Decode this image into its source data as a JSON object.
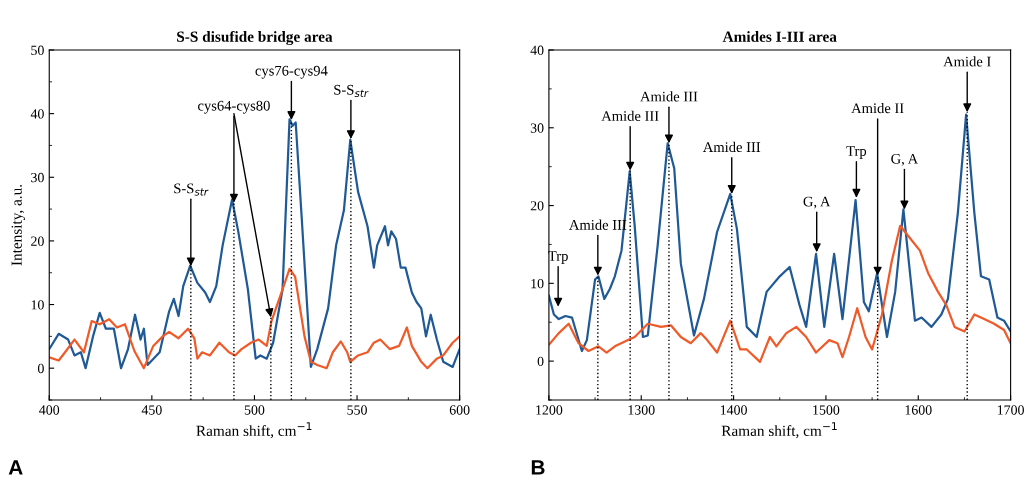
{
  "chart_data": [
    {
      "type": "line",
      "title": "S-S disufide bridge area",
      "xlabel": "Raman shift, cm$^{−1}$",
      "ylabel": "Intensity, a.u.",
      "xlim": [
        400,
        600
      ],
      "xticks": [
        400,
        450,
        500,
        550,
        600
      ],
      "ylim": [
        -5,
        50
      ],
      "yticks": [
        0,
        10,
        20,
        30,
        40,
        50
      ],
      "grid": false,
      "legend": false,
      "series": [
        {
          "color": "#1f5a96",
          "x": [
            400,
            404.6,
            409.2,
            412.3,
            415.4,
            417.7,
            421.5,
            424.6,
            427.6,
            431.5,
            435.0,
            438.4,
            441.8,
            444.5,
            446.1,
            447.9,
            453.8,
            458.4,
            460.7,
            463.0,
            465.3,
            468.7,
            472.2,
            476.0,
            478.3,
            481.4,
            484.5,
            489.1,
            492.2,
            496.8,
            500.6,
            502.9,
            506.0,
            509.1,
            513.7,
            517.1,
            518.6,
            520.1,
            522.9,
            527.5,
            530.6,
            535.9,
            539.8,
            543.6,
            546.7,
            550.5,
            555.1,
            558.2,
            559.8,
            563.6,
            565.1,
            566.7,
            569.0,
            571.3,
            573.6,
            576.7,
            579.0,
            581.3,
            583.6,
            585.9,
            588.9,
            592.0,
            596.6,
            600
          ],
          "values": [
            3.0,
            5.4,
            4.5,
            2.0,
            2.5,
            0,
            5.2,
            8.7,
            6.2,
            6.2,
            0,
            3.0,
            8.4,
            4.5,
            6.2,
            0.5,
            2.5,
            8.9,
            10.9,
            8.2,
            12.9,
            16.1,
            13.4,
            11.9,
            10.4,
            12.9,
            19.3,
            26.5,
            21.3,
            12.4,
            1.5,
            2.0,
            1.5,
            4.0,
            12.4,
            39.1,
            38.1,
            38.6,
            24.3,
            0.2,
            3.0,
            9.4,
            19.3,
            24.8,
            35.9,
            27.7,
            22.3,
            15.8,
            19.3,
            22.3,
            19.3,
            21.5,
            20.3,
            15.8,
            15.8,
            11.9,
            10.4,
            9.4,
            5.0,
            8.4,
            4.5,
            1.0,
            0.2,
            3.0
          ]
        },
        {
          "color": "#f05a28",
          "x": [
            400,
            404.6,
            407.7,
            412.3,
            416.9,
            420.7,
            424.6,
            429.2,
            433.0,
            436.9,
            441.5,
            446.1,
            450.7,
            455.3,
            458.4,
            463.0,
            467.6,
            470.7,
            472.2,
            474.5,
            478.3,
            482.9,
            487.6,
            490.6,
            493.7,
            498.3,
            502.1,
            506.0,
            508.3,
            513.7,
            517.1,
            519.8,
            524.4,
            527.5,
            530.6,
            535.2,
            538.2,
            542.1,
            545.2,
            546.7,
            550.5,
            555.1,
            558.2,
            561.3,
            565.9,
            570.5,
            574.3,
            576.7,
            581.3,
            584.3,
            588.9,
            592.0,
            596.6,
            600
          ],
          "values": [
            1.7,
            1.2,
            2.5,
            4.5,
            2.5,
            7.4,
            6.9,
            7.7,
            6.4,
            6.9,
            2.7,
            0,
            3.5,
            5.0,
            5.7,
            4.7,
            6.2,
            4.7,
            1.5,
            2.5,
            2.0,
            4.0,
            2.5,
            2.0,
            3.0,
            4.0,
            4.5,
            3.5,
            7.4,
            12.4,
            15.6,
            14.4,
            5.0,
            1.0,
            0.5,
            0,
            2.5,
            4.2,
            2.5,
            1.0,
            2.0,
            2.5,
            4.0,
            4.5,
            3.0,
            3.5,
            6.4,
            3.5,
            1.0,
            0,
            1.5,
            2.0,
            4.0,
            5.0
          ]
        },
        {
          "type": "line",
          "line_style": "dotted",
          "color": "#000000",
          "x": [
            469,
            469
          ],
          "values": [
            -5,
            16
          ]
        },
        {
          "type": "line",
          "line_style": "dotted",
          "color": "#000000",
          "x": [
            490,
            490
          ],
          "values": [
            -5,
            26
          ]
        },
        {
          "type": "line",
          "line_style": "dotted",
          "color": "#000000",
          "x": [
            508,
            508
          ],
          "values": [
            -5,
            8
          ]
        },
        {
          "type": "line",
          "line_style": "dotted",
          "color": "#000000",
          "x": [
            518,
            518
          ],
          "values": [
            -5,
            39
          ]
        },
        {
          "type": "line",
          "line_style": "dotted",
          "color": "#000000",
          "x": [
            547,
            547
          ],
          "values": [
            -5,
            36
          ]
        }
      ],
      "annotations": [
        {
          "text": "S-S$_{str}$",
          "x": 469,
          "y": 16
        },
        {
          "text": "cys64-cys80",
          "x": 490,
          "y": 26
        },
        {
          "text": "cys76-cys94",
          "x": 518,
          "y": 39
        },
        {
          "text": "S-S$_{str}$",
          "x": 547,
          "y": 36
        },
        "A"
      ]
    },
    {
      "type": "line",
      "title": "Amides I-III area",
      "xlabel": "Raman shift, cm$^{−1}$",
      "xlim": [
        1200,
        1700
      ],
      "xticks": [
        1200,
        1300,
        1400,
        1500,
        1600,
        1700
      ],
      "ylim": [
        -5,
        40
      ],
      "yticks": [
        0,
        10,
        20,
        30,
        40
      ],
      "grid": false,
      "legend": false,
      "series": [
        {
          "color": "#1f5a96",
          "x": [
            1200,
            1205.4,
            1210.7,
            1217.9,
            1225,
            1235.7,
            1241.1,
            1250,
            1253.6,
            1260,
            1266.1,
            1271.4,
            1278.6,
            1287.5,
            1292.9,
            1301.8,
            1307.1,
            1317.9,
            1328.6,
            1335.7,
            1342.9,
            1357.1,
            1367.9,
            1382.1,
            1396.4,
            1403.6,
            1414.3,
            1425,
            1435.7,
            1450,
            1460.7,
            1471.4,
            1478.6,
            1489.3,
            1498.2,
            1508.9,
            1517.9,
            1532.1,
            1541.1,
            1546.4,
            1555.4,
            1566.1,
            1575,
            1583.9,
            1596.4,
            1603.6,
            1614.3,
            1625,
            1632.1,
            1642.9,
            1651.8,
            1660.7,
            1667.9,
            1676.8,
            1685.7,
            1692.9,
            1700
          ],
          "values": [
            8.4,
            6.0,
            5.4,
            5.8,
            5.6,
            1.3,
            2.7,
            10.5,
            10.9,
            8.0,
            9.3,
            10.9,
            14.2,
            24.4,
            17.4,
            3.1,
            3.3,
            15.0,
            28.0,
            24.8,
            12.5,
            3.3,
            8.0,
            16.6,
            21.5,
            17.0,
            4.4,
            3.1,
            8.9,
            10.9,
            12.1,
            7.2,
            4.4,
            13.8,
            4.4,
            13.8,
            5.4,
            20.7,
            7.6,
            6.4,
            11.3,
            3.1,
            8.9,
            19.5,
            5.2,
            5.6,
            4.4,
            6.0,
            8.0,
            19.1,
            31.7,
            19.1,
            10.9,
            10.5,
            5.6,
            5.2,
            3.8
          ]
        },
        {
          "color": "#f05a28",
          "x": [
            1200,
            1210.7,
            1221.4,
            1232.1,
            1242.9,
            1253.6,
            1262.5,
            1271.4,
            1285.7,
            1292.9,
            1307.1,
            1321.4,
            1332.1,
            1342.9,
            1353.6,
            1364.3,
            1371.4,
            1382.1,
            1396.4,
            1407.1,
            1414.3,
            1428.6,
            1439.3,
            1446.4,
            1457.1,
            1467.9,
            1478.6,
            1489.3,
            1503.6,
            1512.5,
            1517.9,
            1525,
            1533.9,
            1542.9,
            1550,
            1560.7,
            1571.4,
            1580.4,
            1591.1,
            1601.8,
            1610.7,
            1621.4,
            1630.4,
            1639.3,
            1650,
            1660.7,
            1671.4,
            1682.1,
            1692.9,
            1700
          ],
          "values": [
            2.1,
            3.6,
            4.8,
            2.3,
            1.3,
            1.9,
            1.1,
            1.9,
            2.7,
            3.1,
            4.8,
            4.4,
            4.6,
            3.1,
            2.3,
            3.6,
            2.7,
            1.1,
            5.2,
            1.5,
            1.5,
            -0.1,
            3.1,
            1.9,
            3.6,
            4.4,
            3.1,
            1.1,
            2.7,
            2.3,
            0.5,
            3.1,
            6.8,
            3.1,
            1.5,
            6.0,
            12.9,
            17.4,
            15.8,
            14.2,
            11.3,
            8.9,
            7.2,
            4.4,
            3.8,
            6.0,
            5.4,
            4.8,
            4.0,
            2.3
          ]
        },
        {
          "type": "line",
          "line_style": "dotted",
          "color": "#000000",
          "x": [
            1253,
            1253
          ],
          "values": [
            -5,
            11
          ]
        },
        {
          "type": "line",
          "line_style": "dotted",
          "color": "#000000",
          "x": [
            1288,
            1288
          ],
          "values": [
            -5,
            24.5
          ]
        },
        {
          "type": "line",
          "line_style": "dotted",
          "color": "#000000",
          "x": [
            1330,
            1330
          ],
          "values": [
            -5,
            28
          ]
        },
        {
          "type": "line",
          "line_style": "dotted",
          "color": "#000000",
          "x": [
            1398,
            1398
          ],
          "values": [
            -5,
            21.5
          ]
        },
        {
          "type": "line",
          "line_style": "dotted",
          "color": "#000000",
          "x": [
            1556,
            1556
          ],
          "values": [
            -5,
            11
          ]
        },
        {
          "type": "line",
          "line_style": "dotted",
          "color": "#000000",
          "x": [
            1653,
            1653
          ],
          "values": [
            -5,
            32
          ]
        }
      ],
      "annotations": [
        {
          "text": "Trp",
          "x": 1210,
          "y": 7
        },
        {
          "text": "Amide III",
          "x": 1253,
          "y": 11
        },
        {
          "text": "Amide III",
          "x": 1288,
          "y": 24.5
        },
        {
          "text": "Amide III",
          "x": 1330,
          "y": 28
        },
        {
          "text": "Amide III",
          "x": 1398,
          "y": 21.5
        },
        {
          "text": "G, A",
          "x": 1490,
          "y": 14
        },
        {
          "text": "Trp",
          "x": 1533,
          "y": 21
        },
        {
          "text": "Amide II",
          "x": 1556,
          "y": 11
        },
        {
          "text": "G, A",
          "x": 1585,
          "y": 19.5
        },
        {
          "text": "Amide I",
          "x": 1653,
          "y": 32
        },
        "B"
      ]
    }
  ]
}
